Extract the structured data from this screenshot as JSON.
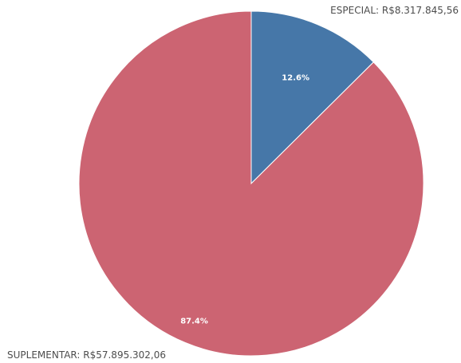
{
  "chart_data": {
    "type": "pie",
    "slices": [
      {
        "name": "ESPECIAL",
        "value": 8317845.56,
        "percent_label": "12.6%",
        "legend_label": "ESPECIAL: R$8.317.845,56",
        "color": "#4677a8"
      },
      {
        "name": "SUPLEMENTAR",
        "value": 57895302.06,
        "percent_label": "87.4%",
        "legend_label": "SUPLEMENTAR: R$57.895.302,06",
        "color": "#cc6472"
      }
    ],
    "start_angle_deg": 0,
    "direction": "clockwise"
  }
}
